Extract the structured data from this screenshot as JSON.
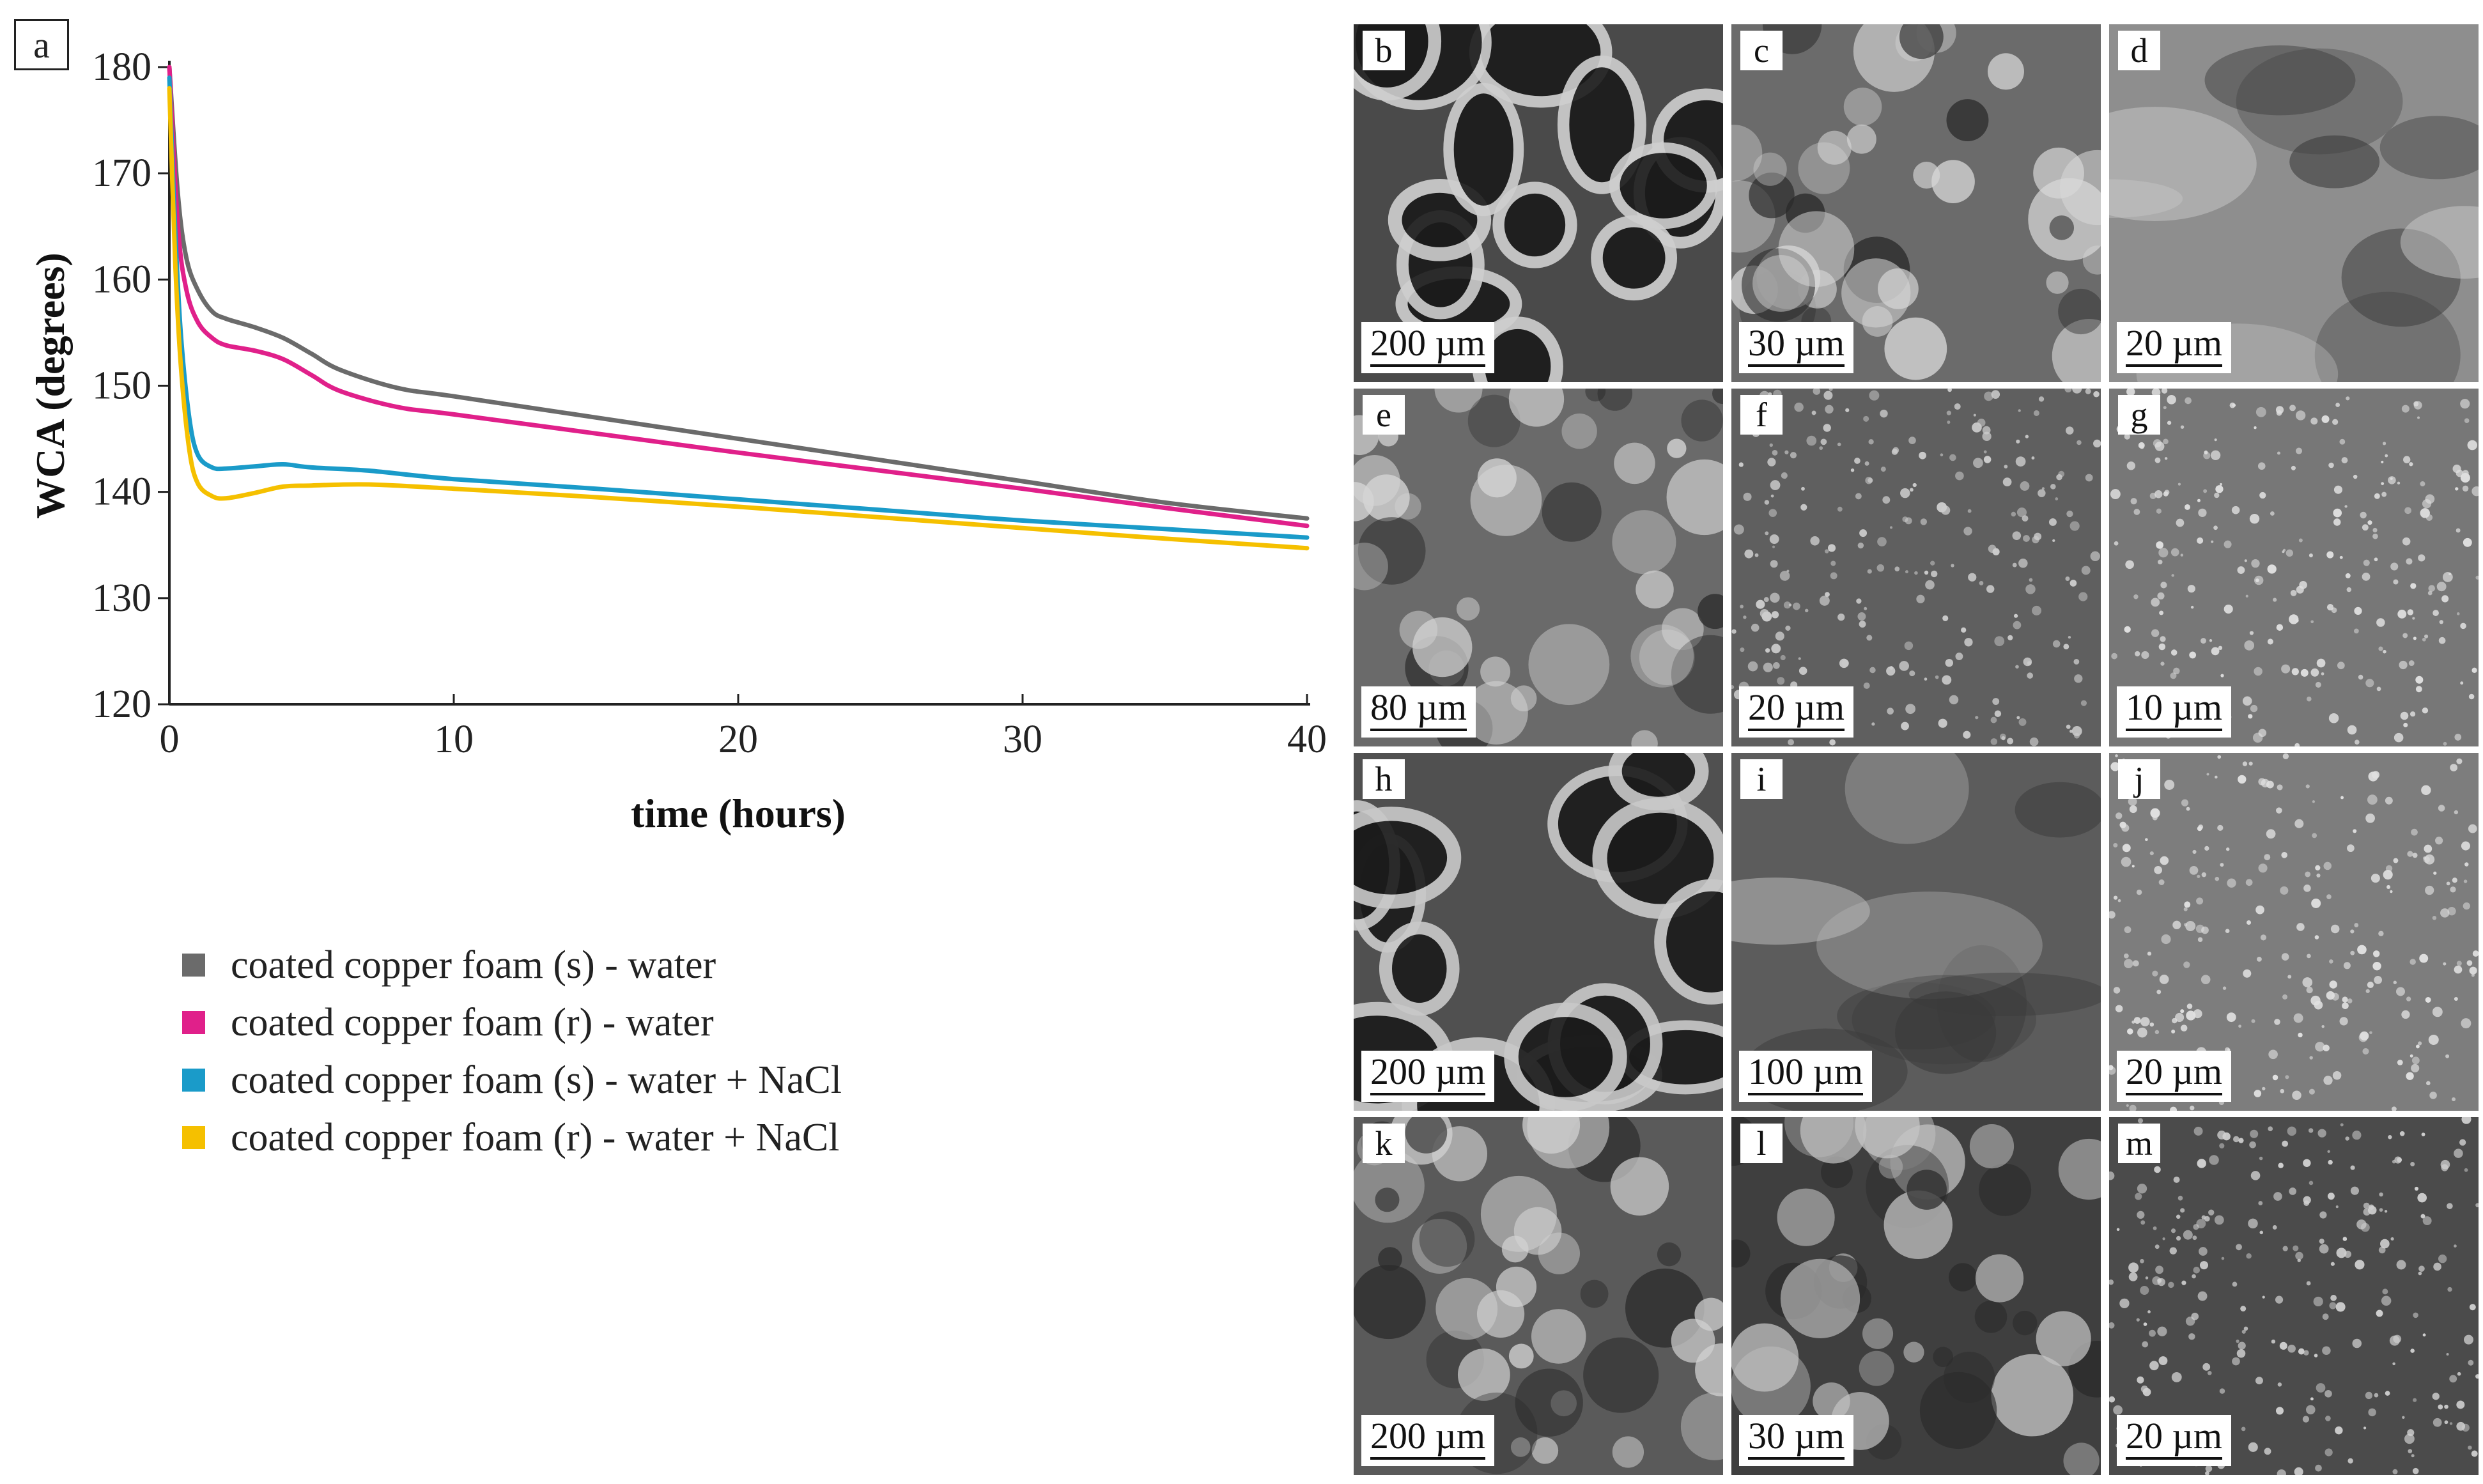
{
  "panel_a": {
    "letter": "a"
  },
  "chart_data": {
    "type": "line",
    "title": "",
    "xlabel": "time (hours)",
    "ylabel": "WCA (degrees)",
    "xlim": [
      0,
      40
    ],
    "ylim": [
      120,
      180
    ],
    "xticks": [
      0,
      10,
      20,
      30,
      40
    ],
    "yticks": [
      120,
      130,
      140,
      150,
      160,
      170,
      180
    ],
    "grid": false,
    "legend_position": "below",
    "series": [
      {
        "name": "coated copper foam (s) - water",
        "color": "#6b6b6b",
        "x": [
          0,
          0.3,
          0.6,
          1,
          1.5,
          2,
          3,
          4,
          5,
          6,
          8,
          10,
          15,
          20,
          25,
          30,
          35,
          40
        ],
        "y": [
          180,
          168,
          162,
          159,
          157,
          156.3,
          155.5,
          154.5,
          153,
          151.5,
          149.8,
          149,
          147,
          145,
          143,
          141,
          139,
          137.5
        ]
      },
      {
        "name": "coated copper foam (r) - water",
        "color": "#e0208a",
        "x": [
          0,
          0.3,
          0.6,
          1,
          1.5,
          2,
          3,
          4,
          5,
          6,
          8,
          10,
          15,
          20,
          25,
          30,
          35,
          40
        ],
        "y": [
          180,
          165,
          159,
          156,
          154.5,
          153.8,
          153.3,
          152.5,
          151,
          149.5,
          148,
          147.3,
          145.5,
          143.7,
          142,
          140.3,
          138.5,
          136.8
        ]
      },
      {
        "name": "coated copper foam (s) - water + NaCl",
        "color": "#1a9bc9",
        "x": [
          0,
          0.2,
          0.4,
          0.7,
          1,
          1.5,
          2,
          3,
          4,
          5,
          7,
          10,
          15,
          20,
          25,
          30,
          35,
          40
        ],
        "y": [
          179,
          165,
          155,
          147,
          143.5,
          142.3,
          142.2,
          142.4,
          142.6,
          142.3,
          142,
          141.2,
          140.3,
          139.3,
          138.3,
          137.3,
          136.5,
          135.7
        ]
      },
      {
        "name": "coated copper foam (r) - water + NaCl",
        "color": "#f5c000",
        "x": [
          0,
          0.2,
          0.4,
          0.7,
          1,
          1.5,
          2,
          3,
          4,
          5,
          7,
          10,
          15,
          20,
          25,
          30,
          35,
          40
        ],
        "y": [
          178,
          162,
          152,
          144,
          140.8,
          139.6,
          139.4,
          139.9,
          140.5,
          140.6,
          140.7,
          140.3,
          139.5,
          138.6,
          137.6,
          136.6,
          135.6,
          134.7
        ]
      }
    ]
  },
  "sem_panels": [
    {
      "letter": "b",
      "scale": "200 µm",
      "tone": "#4a4a4a",
      "accent": "#cfcfcf",
      "style": "mesh"
    },
    {
      "letter": "c",
      "scale": "30 µm",
      "tone": "#6b6b6b",
      "accent": "#d8d8d8",
      "style": "blotch"
    },
    {
      "letter": "d",
      "scale": "20 µm",
      "tone": "#8e8e8e",
      "accent": "#d0d0d0",
      "style": "smooth"
    },
    {
      "letter": "e",
      "scale": "80 µm",
      "tone": "#6a6a6a",
      "accent": "#d5d5d5",
      "style": "blotch"
    },
    {
      "letter": "f",
      "scale": "20 µm",
      "tone": "#5f5f5f",
      "accent": "#cccccc",
      "style": "speckle"
    },
    {
      "letter": "g",
      "scale": "10 µm",
      "tone": "#777777",
      "accent": "#dedede",
      "style": "speckle"
    },
    {
      "letter": "h",
      "scale": "200 µm",
      "tone": "#505050",
      "accent": "#c9c9c9",
      "style": "mesh"
    },
    {
      "letter": "i",
      "scale": "100 µm",
      "tone": "#5c5c5c",
      "accent": "#b8b8b8",
      "style": "smooth"
    },
    {
      "letter": "j",
      "scale": "20 µm",
      "tone": "#7d7d7d",
      "accent": "#e0e0e0",
      "style": "speckle"
    },
    {
      "letter": "k",
      "scale": "200 µm",
      "tone": "#5a5a5a",
      "accent": "#d2d2d2",
      "style": "blotch"
    },
    {
      "letter": "l",
      "scale": "30 µm",
      "tone": "#3f3f3f",
      "accent": "#c4c4c4",
      "style": "blotch"
    },
    {
      "letter": "m",
      "scale": "20 µm",
      "tone": "#4b4b4b",
      "accent": "#d0d0d0",
      "style": "speckle"
    }
  ]
}
